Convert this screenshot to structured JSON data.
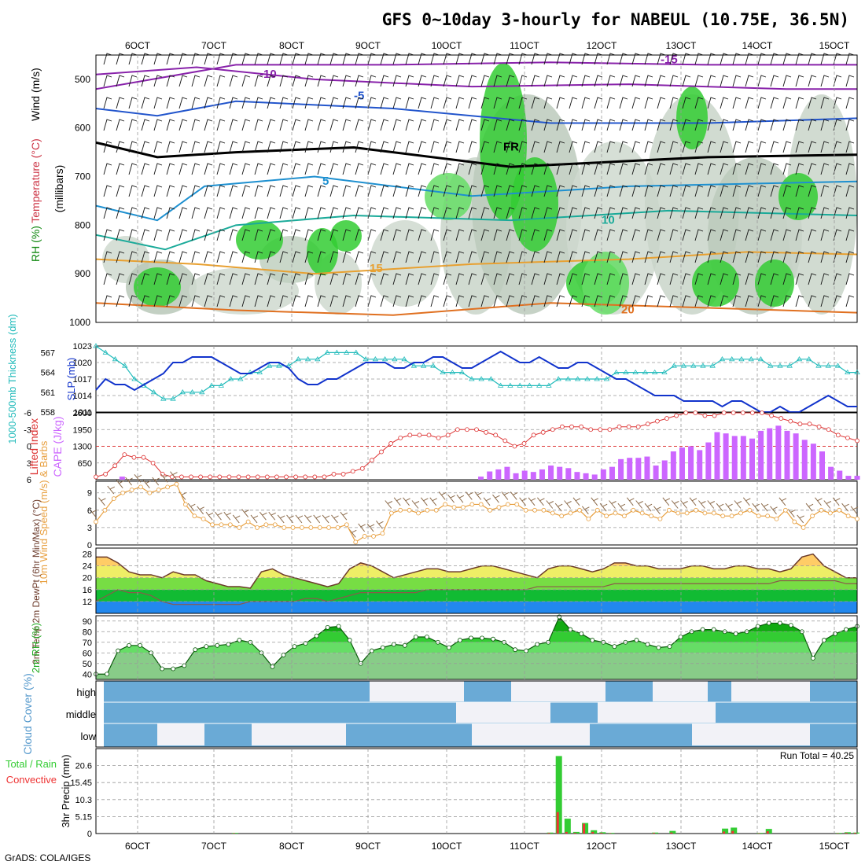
{
  "title": "GFS 0~10day 3-hourly for NABEUL (10.75E, 36.5N)",
  "footer": "GrADS: COLA/IGES",
  "x_ticks": [
    "6OCT",
    "7OCT",
    "8OCT",
    "9OCT",
    "10OCT",
    "11OCT",
    "12OCT",
    "13OCT",
    "14OCT",
    "15OCT"
  ],
  "colors": {
    "rh_green": "#33cc33",
    "rh_light": "#ccddcc",
    "cape": "#cc66ff",
    "li": "#dd3333",
    "slp": "#1133cc",
    "thick": "#22bbbb",
    "wind10": "#e8a040",
    "barb": "#8b6a4a",
    "rain": "#33cc33",
    "conv": "#ee3333",
    "cloud": "#6aaad6",
    "cloud_bg": "#f2f2f7"
  },
  "chart_data": [
    {
      "type": "heatmap",
      "panel": "upper_air",
      "ylabels": [
        "Temperature (°C)",
        "Wind (m/s)",
        "RH (%)",
        "(millibars)"
      ],
      "yticks": [
        "500",
        "600",
        "700",
        "800",
        "900",
        "1000"
      ],
      "ylim": [
        1000,
        450
      ],
      "contour_labels": [
        "-15",
        "-10",
        "-5",
        "FR",
        "5",
        "10",
        "15",
        "20"
      ]
    },
    {
      "type": "line",
      "panel": "slp_thickness",
      "ylabel_left": "1000-500mb Thickness (dm)",
      "ylabel_right": "SLP (mb)",
      "yticks_left": [
        "567",
        "564",
        "561",
        "558"
      ],
      "yticks_right": [
        "1023",
        "1020",
        "1017",
        "1014",
        "1011"
      ],
      "series": [
        {
          "name": "SLP",
          "values": [
            1015,
            1017,
            1016,
            1016,
            1015,
            1016,
            1017,
            1018,
            1020,
            1020,
            1021,
            1021,
            1021,
            1020,
            1019,
            1018,
            1018,
            1019,
            1020,
            1020,
            1019,
            1017,
            1016,
            1016,
            1017,
            1017,
            1018,
            1019,
            1020,
            1020,
            1020,
            1019,
            1019,
            1020,
            1020,
            1021,
            1021,
            1020,
            1019,
            1019,
            1020,
            1021,
            1022,
            1021,
            1020,
            1020,
            1021,
            1020,
            1019,
            1019,
            1020,
            1020,
            1019,
            1018,
            1017,
            1017,
            1016,
            1015,
            1014,
            1014,
            1014,
            1013,
            1013,
            1013,
            1013,
            1012,
            1013,
            1013,
            1012,
            1011,
            1011,
            1012,
            1011,
            1011,
            1012,
            1013,
            1014,
            1013,
            1012,
            1012
          ]
        },
        {
          "name": "Thickness",
          "values": [
            568,
            567,
            566,
            565,
            563,
            562,
            561,
            560,
            560,
            561,
            561,
            561,
            562,
            562,
            563,
            563,
            564,
            564,
            565,
            565,
            565,
            566,
            566,
            566,
            567,
            567,
            567,
            567,
            566,
            566,
            566,
            566,
            566,
            565,
            565,
            565,
            564,
            564,
            564,
            563,
            563,
            563,
            562,
            562,
            562,
            562,
            562,
            562,
            563,
            563,
            563,
            563,
            563,
            563,
            564,
            564,
            564,
            564,
            564,
            564,
            565,
            565,
            565,
            565,
            565,
            566,
            566,
            566,
            566,
            566,
            565,
            565,
            565,
            566,
            566,
            565,
            565,
            565,
            564,
            564
          ]
        }
      ]
    },
    {
      "type": "bar",
      "panel": "cape_li",
      "ylabel_left": "Lifted Index",
      "ylabel_right": "CAPE (J/kg)",
      "yticks_left": [
        "-6",
        "-3",
        "0",
        "3",
        "6"
      ],
      "yticks_right": [
        "2600",
        "1950",
        "1300",
        "650"
      ],
      "series": [
        {
          "name": "CAPE",
          "values": [
            0,
            0,
            0,
            120,
            0,
            0,
            0,
            0,
            0,
            0,
            0,
            0,
            0,
            0,
            0,
            0,
            0,
            0,
            0,
            0,
            0,
            0,
            0,
            0,
            0,
            0,
            0,
            0,
            0,
            0,
            0,
            0,
            0,
            0,
            0,
            0,
            0,
            0,
            0,
            0,
            0,
            0,
            0,
            0,
            120,
            320,
            400,
            500,
            250,
            350,
            300,
            400,
            550,
            500,
            450,
            300,
            250,
            200,
            400,
            500,
            800,
            850,
            850,
            900,
            550,
            750,
            1100,
            1250,
            1300,
            1150,
            1450,
            1850,
            1800,
            1700,
            1700,
            1600,
            1900,
            2000,
            2100,
            1900,
            1800,
            1550,
            1400,
            1100,
            500,
            350,
            150,
            150
          ]
        },
        {
          "name": "Lifted Index",
          "values": [
            5.5,
            5,
            3.5,
            1.5,
            2,
            2,
            3,
            5,
            5.5,
            5.5,
            5.5,
            5.5,
            5.5,
            5.5,
            5.5,
            5.5,
            5.5,
            5.5,
            5.5,
            5.5,
            5.5,
            5.5,
            5.5,
            5.5,
            5.5,
            5,
            5,
            4.5,
            4,
            2.5,
            1,
            -0.5,
            -1.5,
            -2,
            -2,
            -2,
            -1.5,
            -2,
            -3,
            -3,
            -3,
            -2.5,
            -2,
            -1,
            0,
            -0.5,
            -2,
            -2.5,
            -3,
            -3.5,
            -3.5,
            -3.5,
            -3,
            -3,
            -3,
            -3.5,
            -3.5,
            -3.5,
            -4,
            -4.5,
            -5,
            -5.5,
            -6,
            -6,
            -5.5,
            -5.5,
            -6,
            -6,
            -6,
            -6,
            -6,
            -5.5,
            -5,
            -4.5,
            -4,
            -4,
            -3.5,
            -3,
            -2,
            -1.5,
            -1
          ]
        }
      ]
    },
    {
      "type": "line",
      "panel": "wind10m",
      "ylabel": "10m Wind Speed (m/s) & Barbs",
      "yticks": [
        "9",
        "6",
        "3",
        "0"
      ],
      "series": [
        {
          "name": "10m Wind Speed",
          "values": [
            4,
            6,
            8,
            9,
            9.5,
            10,
            9,
            9.5,
            10,
            10.5,
            7,
            5,
            4.5,
            3.5,
            3.5,
            3.5,
            3,
            4,
            3,
            3.5,
            3.5,
            3,
            3,
            3,
            3,
            3,
            3,
            3,
            3.5,
            0.5,
            1.5,
            1.5,
            2,
            5.5,
            6,
            6,
            5.5,
            6,
            6,
            7,
            6.5,
            6.5,
            7,
            7,
            6,
            6.5,
            7,
            7,
            6,
            6,
            6,
            5.5,
            5,
            5.5,
            6,
            4.5,
            6,
            5,
            5.5,
            5,
            6,
            5.5,
            5,
            4.5,
            6,
            5.5,
            5.5,
            6,
            5.5,
            5.5,
            5,
            5,
            5.5,
            6,
            5,
            5,
            4.5,
            6,
            4,
            3,
            5,
            6,
            5.5,
            6,
            5,
            4.5
          ]
        }
      ]
    },
    {
      "type": "area",
      "panel": "temp2m",
      "ylabel": "2m Temp 2m DewPt (6hr Min/Max) (°C)",
      "yticks": [
        "28",
        "24",
        "20",
        "16",
        "12"
      ],
      "series": [
        {
          "name": "2m Temp",
          "values": [
            27,
            27,
            25,
            22,
            21,
            21,
            20,
            22,
            21,
            21,
            19,
            18,
            17,
            17,
            16.5,
            22,
            23,
            21,
            20,
            19,
            18,
            17,
            18,
            23,
            25,
            24,
            22,
            20,
            21,
            22,
            23,
            23,
            22,
            22,
            23,
            24,
            24,
            23,
            22,
            21,
            20,
            23,
            24,
            24,
            23,
            22,
            23,
            25,
            25,
            24,
            24,
            23,
            23,
            23,
            24,
            24,
            23,
            23,
            24,
            24,
            23,
            23,
            22,
            23,
            27,
            28,
            24,
            22,
            20,
            20
          ]
        },
        {
          "name": "2m DewPt",
          "values": [
            12,
            14,
            16,
            15,
            15,
            14,
            12,
            11,
            11,
            11,
            11,
            11,
            11,
            11,
            12,
            12,
            12,
            12,
            12,
            13,
            13,
            12,
            13,
            14,
            15,
            15,
            15,
            15,
            15,
            15,
            16,
            16,
            16,
            16,
            16,
            16,
            16,
            16,
            16,
            16,
            17,
            17,
            17,
            17,
            17,
            17,
            17,
            18,
            18,
            18,
            18,
            18,
            18,
            18,
            18,
            18,
            18,
            18,
            18,
            18,
            18,
            18,
            19,
            19,
            19,
            19,
            19,
            19,
            18,
            18
          ]
        }
      ]
    },
    {
      "type": "area",
      "panel": "rh2m",
      "ylabel": "2m RH (%)",
      "yticks": [
        "90",
        "80",
        "70",
        "60",
        "50",
        "40"
      ],
      "series": [
        {
          "name": "2m RH",
          "values": [
            40,
            40,
            62,
            67,
            67,
            60,
            45,
            45,
            48,
            63,
            66,
            67,
            68,
            72,
            70,
            60,
            47,
            58,
            66,
            69,
            76,
            84,
            85,
            72,
            50,
            62,
            65,
            68,
            67,
            75,
            75,
            70,
            65,
            72,
            74,
            74,
            73,
            70,
            63,
            62,
            68,
            70,
            94,
            82,
            78,
            72,
            70,
            66,
            70,
            72,
            68,
            65,
            66,
            75,
            80,
            82,
            82,
            80,
            78,
            80,
            85,
            88,
            88,
            86,
            80,
            55,
            72,
            78,
            82,
            85
          ]
        }
      ]
    },
    {
      "type": "bar",
      "panel": "cloud",
      "ylabel": "Cloud Cover (%)",
      "ytick_labels": [
        "high",
        "middle",
        "low"
      ]
    },
    {
      "type": "bar",
      "panel": "precip",
      "ylabel": "3hr Precip (mm)",
      "legend": [
        "Total / Rain",
        "Convective"
      ],
      "run_total_label": "Run Total = 40.25",
      "yticks": [
        "20.6",
        "15.45",
        "10.3",
        "5.15",
        "0"
      ],
      "series": [
        {
          "name": "Total",
          "values": [
            0,
            0,
            0,
            0,
            0,
            0,
            0,
            0,
            0,
            0,
            0,
            0,
            0,
            0,
            0,
            0,
            0.2,
            0,
            0,
            0,
            0,
            0,
            0,
            0,
            0,
            0,
            0,
            0,
            0,
            0,
            0,
            0,
            0,
            0,
            0,
            0,
            0,
            0,
            0,
            0,
            0,
            0,
            0,
            0,
            0,
            0,
            0,
            0,
            0,
            0,
            0,
            0,
            0.3,
            23.5,
            4.5,
            0.5,
            3.2,
            1,
            0.4,
            0.2,
            0,
            0,
            0,
            0,
            0.3,
            0,
            0.8,
            0,
            0,
            0,
            0,
            0,
            1.5,
            1.8,
            0,
            0,
            0.2,
            1.4,
            0,
            0,
            0,
            0,
            0,
            0,
            0,
            0.2,
            0.4,
            0.3
          ]
        },
        {
          "name": "Convective",
          "values": [
            0,
            0,
            0,
            0,
            0,
            0,
            0,
            0,
            0,
            0,
            0,
            0,
            0,
            0,
            0,
            0,
            0.1,
            0,
            0,
            0,
            0,
            0,
            0,
            0,
            0,
            0,
            0,
            0,
            0,
            0,
            0,
            0,
            0,
            0,
            0,
            0,
            0,
            0,
            0,
            0,
            0,
            0,
            0,
            0,
            0,
            0,
            0,
            0,
            0,
            0,
            0,
            0,
            0.2,
            6.5,
            0.5,
            0.2,
            3,
            0.5,
            0.2,
            0.1,
            0,
            0,
            0,
            0,
            0.2,
            0,
            0.3,
            0,
            0,
            0,
            0,
            0,
            0.6,
            0.8,
            0,
            0,
            0.1,
            0.7,
            0,
            0,
            0,
            0,
            0,
            0,
            0,
            0.1,
            0.2,
            0.2
          ]
        }
      ]
    }
  ]
}
